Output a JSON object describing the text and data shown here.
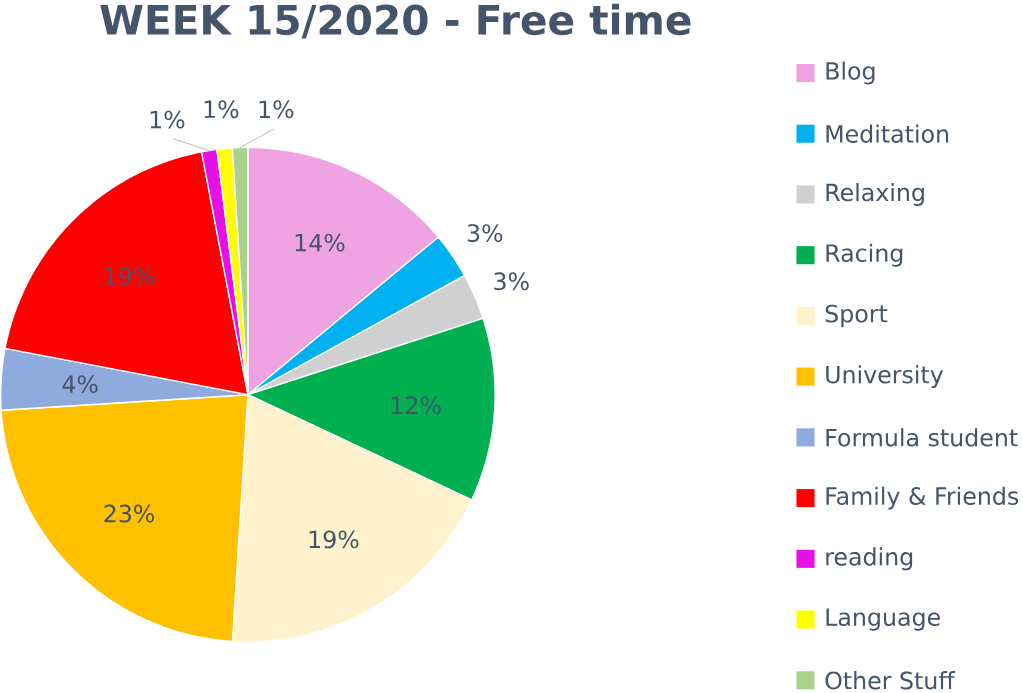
{
  "chart_data": {
    "type": "pie",
    "title": "WEEK 15/2020 - Free time",
    "categories": [
      "Blog",
      "Meditation",
      "Relaxing",
      "Racing",
      "Sport",
      "University",
      "Formula student",
      "Family & Friends",
      "reading",
      "Language",
      "Other Stuff"
    ],
    "values": [
      14,
      3,
      3,
      12,
      19,
      23,
      4,
      19,
      1,
      1,
      1
    ],
    "value_labels": [
      "14%",
      "3%",
      "3%",
      "12%",
      "19%",
      "23%",
      "4%",
      "19%",
      "1%",
      "1%",
      "1%"
    ],
    "colors": [
      "#efa3e2",
      "#00b0f0",
      "#d0d0d0",
      "#00b050",
      "#fff2cc",
      "#ffc000",
      "#8faadc",
      "#ff0000",
      "#e60fe6",
      "#ffff00",
      "#a9d18e"
    ],
    "legend": "right"
  }
}
